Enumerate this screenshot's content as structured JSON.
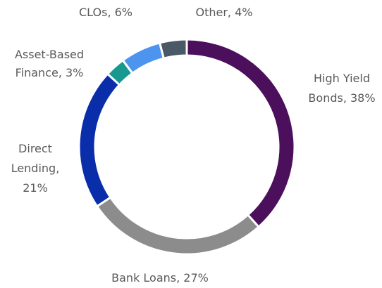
{
  "chart_data": {
    "type": "pie",
    "labels": [
      [
        "High Yield",
        "Bonds, 38%"
      ],
      [
        "Bank Loans, 27%"
      ],
      [
        "Direct",
        "Lending,",
        "21%"
      ],
      [
        "Asset-Based",
        "Finance, 3%"
      ],
      [
        "CLOs, 6%"
      ],
      [
        "Other, 4%"
      ]
    ],
    "values": [
      38,
      27,
      21,
      3,
      6,
      4
    ],
    "colors": [
      "#4b0f5c",
      "#8c8c8c",
      "#0a2daa",
      "#17998f",
      "#4d94ef",
      "#4b5966"
    ]
  }
}
